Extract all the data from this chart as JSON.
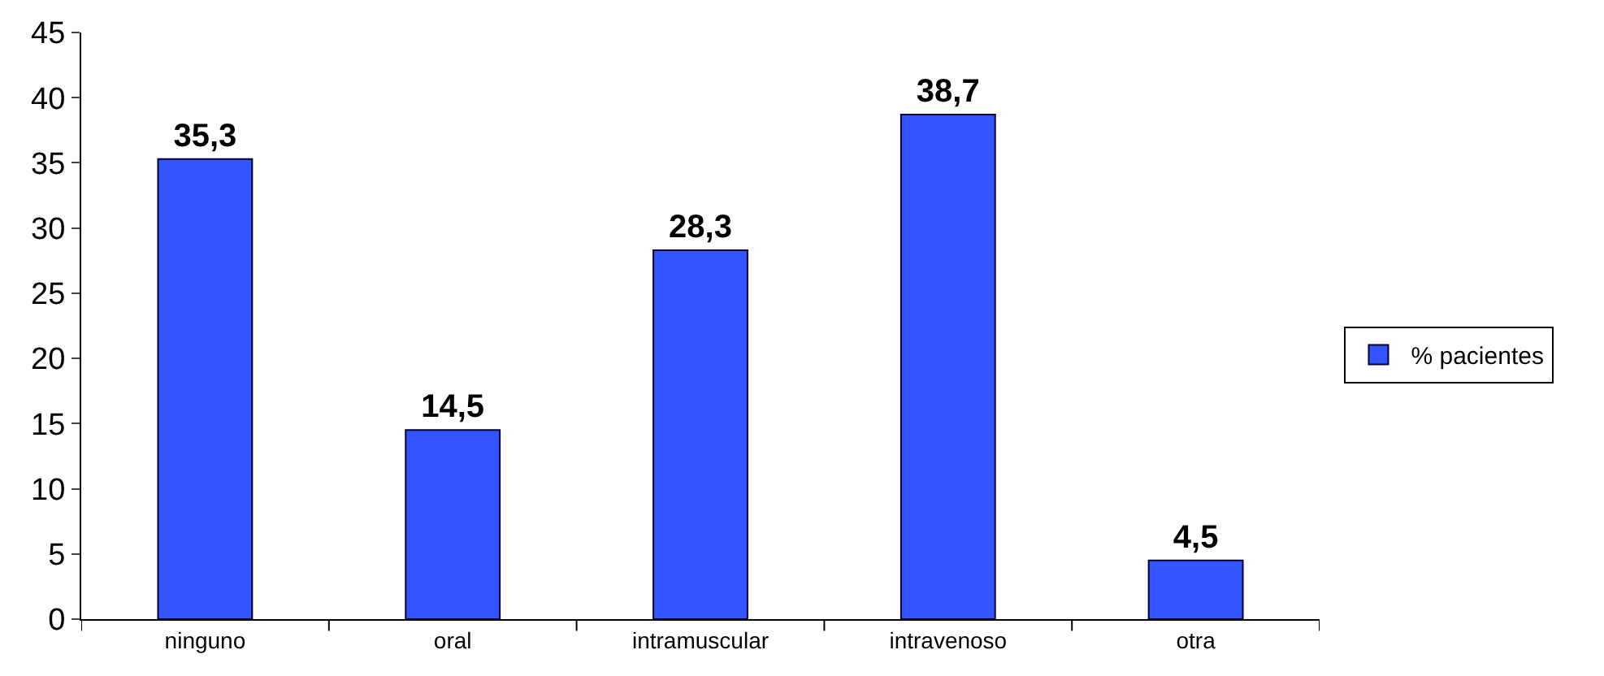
{
  "chart_data": {
    "type": "bar",
    "categories": [
      "ninguno",
      "oral",
      "intramuscular",
      "intravenoso",
      "otra"
    ],
    "series": [
      {
        "name": "% pacientes",
        "color": "#3355ff",
        "values": [
          35.3,
          14.5,
          28.3,
          38.7,
          4.5
        ],
        "value_labels": [
          "35,3",
          "14,5",
          "28,3",
          "38,7",
          "4,5"
        ]
      }
    ],
    "ylim": [
      0,
      45
    ],
    "yticks": [
      0,
      5,
      10,
      15,
      20,
      25,
      30,
      35,
      40,
      45
    ],
    "legend": "right"
  }
}
